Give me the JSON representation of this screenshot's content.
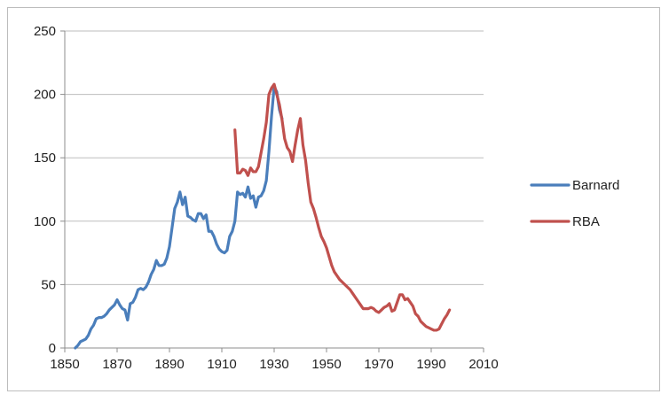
{
  "chart_data": {
    "type": "line",
    "title": "",
    "xlabel": "",
    "ylabel": "",
    "xlim": [
      1850,
      2010
    ],
    "ylim": [
      0,
      250
    ],
    "x_ticks": [
      1850,
      1870,
      1890,
      1910,
      1930,
      1950,
      1970,
      1990,
      2010
    ],
    "y_ticks": [
      0,
      50,
      100,
      150,
      200,
      250
    ],
    "x_tick_labels": [
      "1850",
      "1870",
      "1890",
      "1910",
      "1930",
      "1950",
      "1970",
      "1990",
      "2010"
    ],
    "y_tick_labels": [
      "0",
      "50",
      "100",
      "150",
      "200",
      "250"
    ],
    "grid": "horizontal",
    "legend_position": "right",
    "series": [
      {
        "name": "Barnard",
        "color": "#4a7ebb",
        "points": [
          [
            1854,
            0
          ],
          [
            1855,
            2
          ],
          [
            1856,
            5
          ],
          [
            1857,
            6
          ],
          [
            1858,
            7
          ],
          [
            1859,
            10
          ],
          [
            1860,
            15
          ],
          [
            1861,
            18
          ],
          [
            1862,
            23
          ],
          [
            1863,
            24
          ],
          [
            1864,
            24
          ],
          [
            1865,
            25
          ],
          [
            1866,
            27
          ],
          [
            1867,
            30
          ],
          [
            1868,
            32
          ],
          [
            1869,
            34
          ],
          [
            1870,
            38
          ],
          [
            1871,
            34
          ],
          [
            1872,
            31
          ],
          [
            1873,
            30
          ],
          [
            1874,
            22
          ],
          [
            1875,
            35
          ],
          [
            1876,
            36
          ],
          [
            1877,
            40
          ],
          [
            1878,
            46
          ],
          [
            1879,
            47
          ],
          [
            1880,
            46
          ],
          [
            1881,
            48
          ],
          [
            1882,
            52
          ],
          [
            1883,
            58
          ],
          [
            1884,
            62
          ],
          [
            1885,
            69
          ],
          [
            1886,
            65
          ],
          [
            1887,
            65
          ],
          [
            1888,
            66
          ],
          [
            1889,
            71
          ],
          [
            1890,
            80
          ],
          [
            1891,
            95
          ],
          [
            1892,
            110
          ],
          [
            1893,
            115
          ],
          [
            1894,
            123
          ],
          [
            1895,
            113
          ],
          [
            1896,
            119
          ],
          [
            1897,
            104
          ],
          [
            1898,
            103
          ],
          [
            1899,
            101
          ],
          [
            1900,
            100
          ],
          [
            1901,
            106
          ],
          [
            1902,
            106
          ],
          [
            1903,
            102
          ],
          [
            1904,
            105
          ],
          [
            1905,
            92
          ],
          [
            1906,
            92
          ],
          [
            1907,
            88
          ],
          [
            1908,
            82
          ],
          [
            1909,
            78
          ],
          [
            1910,
            76
          ],
          [
            1911,
            75
          ],
          [
            1912,
            77
          ],
          [
            1913,
            88
          ],
          [
            1914,
            92
          ],
          [
            1915,
            100
          ],
          [
            1916,
            123
          ],
          [
            1917,
            121
          ],
          [
            1918,
            122
          ],
          [
            1919,
            119
          ],
          [
            1920,
            127
          ],
          [
            1921,
            118
          ],
          [
            1922,
            120
          ],
          [
            1923,
            111
          ],
          [
            1924,
            119
          ],
          [
            1925,
            120
          ],
          [
            1926,
            124
          ],
          [
            1927,
            132
          ],
          [
            1928,
            155
          ],
          [
            1929,
            183
          ],
          [
            1930,
            206
          ],
          [
            1931,
            202
          ],
          [
            1932,
            188
          ],
          [
            1933,
            181
          ]
        ]
      },
      {
        "name": "RBA",
        "color": "#c0504d",
        "points": [
          [
            1915,
            172
          ],
          [
            1916,
            138
          ],
          [
            1917,
            138
          ],
          [
            1918,
            141
          ],
          [
            1919,
            140
          ],
          [
            1920,
            136
          ],
          [
            1921,
            142
          ],
          [
            1922,
            139
          ],
          [
            1923,
            139
          ],
          [
            1924,
            143
          ],
          [
            1925,
            154
          ],
          [
            1926,
            165
          ],
          [
            1927,
            178
          ],
          [
            1928,
            200
          ],
          [
            1929,
            205
          ],
          [
            1930,
            208
          ],
          [
            1931,
            200
          ],
          [
            1932,
            192
          ],
          [
            1933,
            180
          ],
          [
            1934,
            165
          ],
          [
            1935,
            158
          ],
          [
            1936,
            155
          ],
          [
            1937,
            147
          ],
          [
            1938,
            160
          ],
          [
            1939,
            172
          ],
          [
            1940,
            181
          ],
          [
            1941,
            160
          ],
          [
            1942,
            148
          ],
          [
            1943,
            130
          ],
          [
            1944,
            115
          ],
          [
            1945,
            110
          ],
          [
            1946,
            103
          ],
          [
            1947,
            95
          ],
          [
            1948,
            88
          ],
          [
            1949,
            84
          ],
          [
            1950,
            79
          ],
          [
            1951,
            72
          ],
          [
            1952,
            65
          ],
          [
            1953,
            60
          ],
          [
            1954,
            57
          ],
          [
            1955,
            54
          ],
          [
            1956,
            52
          ],
          [
            1957,
            50
          ],
          [
            1958,
            48
          ],
          [
            1959,
            46
          ],
          [
            1960,
            43
          ],
          [
            1961,
            40
          ],
          [
            1962,
            37
          ],
          [
            1963,
            34
          ],
          [
            1964,
            31
          ],
          [
            1965,
            31
          ],
          [
            1966,
            31
          ],
          [
            1967,
            32
          ],
          [
            1968,
            31
          ],
          [
            1969,
            29
          ],
          [
            1970,
            28
          ],
          [
            1971,
            30
          ],
          [
            1972,
            32
          ],
          [
            1973,
            33
          ],
          [
            1974,
            35
          ],
          [
            1975,
            29
          ],
          [
            1976,
            30
          ],
          [
            1977,
            36
          ],
          [
            1978,
            42
          ],
          [
            1979,
            42
          ],
          [
            1980,
            38
          ],
          [
            1981,
            39
          ],
          [
            1982,
            36
          ],
          [
            1983,
            33
          ],
          [
            1984,
            27
          ],
          [
            1985,
            25
          ],
          [
            1986,
            21
          ],
          [
            1987,
            19
          ],
          [
            1988,
            17
          ],
          [
            1989,
            16
          ],
          [
            1990,
            15
          ],
          [
            1991,
            14
          ],
          [
            1992,
            14
          ],
          [
            1993,
            15
          ],
          [
            1994,
            19
          ],
          [
            1995,
            23
          ],
          [
            1996,
            26
          ],
          [
            1997,
            30
          ]
        ]
      }
    ]
  }
}
